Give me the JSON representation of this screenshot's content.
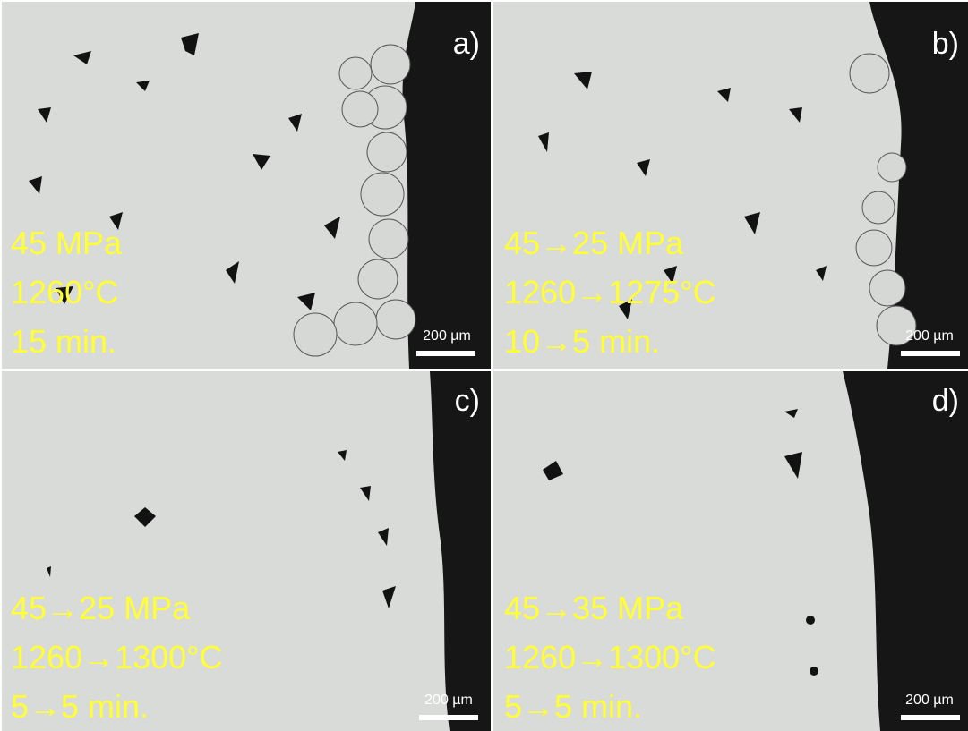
{
  "panels": [
    {
      "label": "a)",
      "conditions": [
        "45 MPa",
        "1260°C",
        "15 min."
      ],
      "scale_bar": "200 µm"
    },
    {
      "label": "b)",
      "conditions": [
        "45→25 MPa",
        "1260→1275°C",
        "10→5 min."
      ],
      "scale_bar": "200 µm"
    },
    {
      "label": "c)",
      "conditions": [
        "45→25 MPa",
        "1260→1300°C",
        "5→5 min."
      ],
      "scale_bar": "200 µm"
    },
    {
      "label": "d)",
      "conditions": [
        "45→35 MPa",
        "1260→1300°C",
        "5→5 min."
      ],
      "scale_bar": "200 µm"
    }
  ]
}
